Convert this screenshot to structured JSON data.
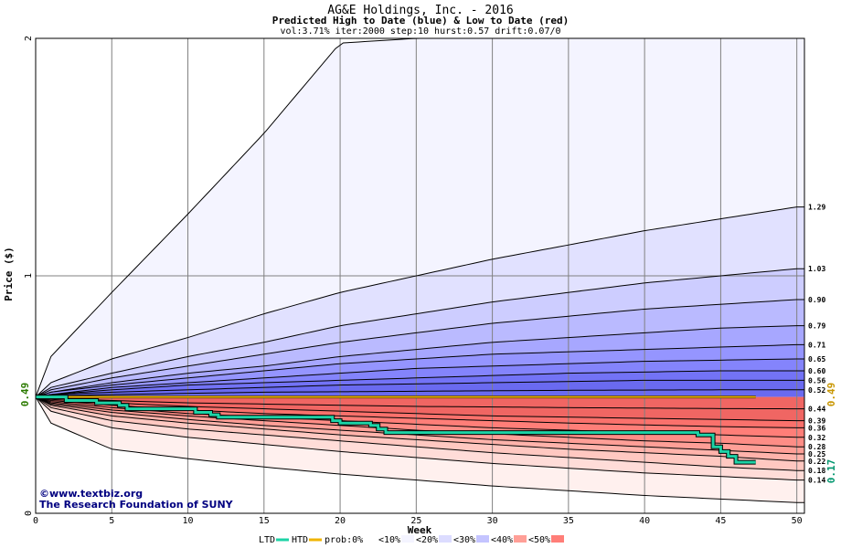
{
  "chart_data": {
    "type": "area",
    "title": "AG&E Holdings, Inc. - 2016",
    "subtitle": "Predicted High to Date (blue) &  Low to Date (red)",
    "params": "vol:3.71% iter:2000 step:10 hurst:0.57 drift:0.07/0",
    "xlabel": "Week",
    "ylabel": "Price ($)",
    "xlim": [
      0,
      50.5
    ],
    "ylim": [
      0,
      2
    ],
    "x_ticks": [
      "0",
      "5",
      "10",
      "15",
      "20",
      "25",
      "30",
      "35",
      "40",
      "45",
      "50"
    ],
    "y_ticks": [
      "0",
      "1",
      "2"
    ],
    "grid": true,
    "start_price": 0.49,
    "start_label": "0.49",
    "end_price": 0.17,
    "end_label": "0.17",
    "start_line_label": "0.49",
    "high_band_labels": [
      "1.29",
      "1.03",
      "0.90",
      "0.79",
      "0.71",
      "0.65",
      "0.60",
      "0.56",
      "0.52"
    ],
    "low_band_labels": [
      "0.44",
      "0.39",
      "0.36",
      "0.32",
      "0.28",
      "0.25",
      "0.22",
      "0.18",
      "0.14"
    ],
    "high_quantiles": {
      "x": [
        0,
        1,
        5,
        10,
        15,
        20,
        25,
        30,
        35,
        40,
        45,
        50
      ],
      "envelope": [
        0.49,
        0.66,
        0.93,
        1.26,
        1.6,
        1.98,
        2.0,
        2.0,
        2.0,
        2.0,
        2.0,
        2.0
      ],
      "q1": [
        0.49,
        0.55,
        0.65,
        0.74,
        0.84,
        0.93,
        1.0,
        1.07,
        1.13,
        1.19,
        1.24,
        1.29
      ],
      "q2": [
        0.49,
        0.53,
        0.59,
        0.66,
        0.72,
        0.79,
        0.84,
        0.89,
        0.93,
        0.97,
        1.0,
        1.03
      ],
      "q3": [
        0.49,
        0.52,
        0.57,
        0.62,
        0.67,
        0.72,
        0.76,
        0.8,
        0.83,
        0.86,
        0.88,
        0.9
      ],
      "q4": [
        0.49,
        0.51,
        0.55,
        0.59,
        0.62,
        0.66,
        0.69,
        0.72,
        0.74,
        0.76,
        0.78,
        0.79
      ],
      "q5": [
        0.49,
        0.51,
        0.54,
        0.57,
        0.6,
        0.63,
        0.65,
        0.67,
        0.68,
        0.69,
        0.7,
        0.71
      ],
      "q6": [
        0.49,
        0.5,
        0.53,
        0.55,
        0.57,
        0.59,
        0.61,
        0.62,
        0.63,
        0.64,
        0.645,
        0.65
      ],
      "q7": [
        0.49,
        0.5,
        0.52,
        0.54,
        0.55,
        0.56,
        0.57,
        0.58,
        0.59,
        0.595,
        0.6,
        0.6
      ],
      "q8": [
        0.49,
        0.5,
        0.51,
        0.52,
        0.53,
        0.54,
        0.545,
        0.55,
        0.555,
        0.56,
        0.56,
        0.56
      ],
      "q9": [
        0.49,
        0.495,
        0.5,
        0.505,
        0.51,
        0.512,
        0.514,
        0.516,
        0.518,
        0.519,
        0.52,
        0.52
      ]
    },
    "low_quantiles": {
      "x": [
        0,
        1,
        5,
        10,
        15,
        20,
        25,
        30,
        35,
        40,
        45,
        50
      ],
      "q1": [
        0.49,
        0.485,
        0.475,
        0.465,
        0.46,
        0.455,
        0.45,
        0.448,
        0.445,
        0.443,
        0.441,
        0.44
      ],
      "q2": [
        0.49,
        0.48,
        0.465,
        0.45,
        0.44,
        0.43,
        0.42,
        0.41,
        0.405,
        0.4,
        0.395,
        0.39
      ],
      "q3": [
        0.49,
        0.475,
        0.455,
        0.435,
        0.42,
        0.41,
        0.4,
        0.39,
        0.38,
        0.372,
        0.365,
        0.36
      ],
      "q4": [
        0.49,
        0.47,
        0.445,
        0.42,
        0.405,
        0.39,
        0.375,
        0.36,
        0.35,
        0.34,
        0.33,
        0.32
      ],
      "q5": [
        0.49,
        0.465,
        0.435,
        0.41,
        0.39,
        0.37,
        0.35,
        0.335,
        0.32,
        0.305,
        0.295,
        0.28
      ],
      "q6": [
        0.49,
        0.46,
        0.425,
        0.395,
        0.37,
        0.35,
        0.33,
        0.31,
        0.295,
        0.28,
        0.265,
        0.25
      ],
      "q7": [
        0.49,
        0.455,
        0.41,
        0.38,
        0.355,
        0.33,
        0.31,
        0.29,
        0.27,
        0.255,
        0.24,
        0.22
      ],
      "q8": [
        0.49,
        0.445,
        0.39,
        0.355,
        0.33,
        0.305,
        0.28,
        0.255,
        0.235,
        0.215,
        0.195,
        0.18
      ],
      "q9": [
        0.49,
        0.43,
        0.36,
        0.32,
        0.29,
        0.26,
        0.235,
        0.21,
        0.19,
        0.17,
        0.155,
        0.14
      ],
      "envelope": [
        0.49,
        0.38,
        0.27,
        0.23,
        0.195,
        0.165,
        0.14,
        0.115,
        0.095,
        0.075,
        0.06,
        0.045
      ]
    },
    "htd_line": {
      "x": [
        0,
        47.3
      ],
      "y": [
        0.49,
        0.49
      ]
    },
    "ltd_line": {
      "x": [
        0,
        2,
        2,
        4,
        4,
        5.5,
        5.5,
        6,
        6,
        10.5,
        10.5,
        11.5,
        11.5,
        12,
        12,
        19.5,
        19.5,
        20,
        20,
        22,
        22,
        22.5,
        22.5,
        23,
        23,
        43.5,
        43.5,
        44.5,
        44.5,
        45,
        45,
        45.5,
        45.5,
        46,
        46,
        47.3
      ],
      "y": [
        0.49,
        0.49,
        0.475,
        0.475,
        0.465,
        0.465,
        0.455,
        0.455,
        0.44,
        0.44,
        0.425,
        0.425,
        0.415,
        0.415,
        0.405,
        0.405,
        0.39,
        0.39,
        0.38,
        0.38,
        0.37,
        0.37,
        0.355,
        0.355,
        0.34,
        0.34,
        0.33,
        0.33,
        0.28,
        0.28,
        0.26,
        0.26,
        0.24,
        0.24,
        0.215,
        0.215
      ]
    },
    "colors": {
      "high": [
        "#f4f4ff",
        "#e1e1ff",
        "#cdcdff",
        "#babaff",
        "#a7a7ff",
        "#9595ff",
        "#8484fc",
        "#7373f6",
        "#6a6af0"
      ],
      "low": [
        "#fff0ee",
        "#ffdcd8",
        "#ffc8c1",
        "#ffb3ab",
        "#ff9f97",
        "#ff8d86",
        "#ff7e78",
        "#fa716c",
        "#f06663"
      ],
      "high_label_color": "#000000",
      "start_color": "#2b7a00",
      "end_color": "#00966e",
      "start_line_color": "#c89600",
      "ltd_color": "#1dd3a6",
      "htd_color": "#f0b400",
      "grid": "#808080"
    },
    "legend": {
      "placement": "bottom",
      "items": [
        "LTD",
        "HTD",
        "prob:0%",
        "<10%",
        "<20%",
        "<30%",
        "<40%",
        "<50%"
      ],
      "swatch_colors": [
        "#1dd3a6",
        "#f0b400",
        "#ffffff",
        "#f4f4ff",
        "#dcdcff",
        "#c4c4ff",
        "#ff9f97",
        "#ff7e78"
      ]
    },
    "watermark_line1": "©www.textbiz.org",
    "watermark_line2": "The Research Foundation of SUNY"
  }
}
